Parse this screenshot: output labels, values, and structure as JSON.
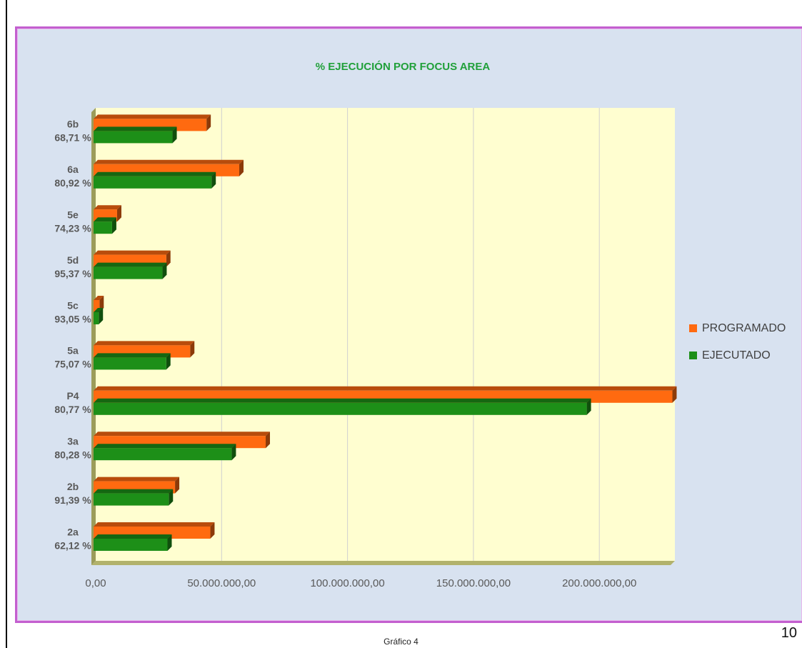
{
  "caption": "Gráfico 4",
  "page_number": "10",
  "colors": {
    "programado": "#ff6a10",
    "ejecutado": "#1d8f18",
    "title": "#21a03a",
    "plot_background": "#fffed0",
    "chart_background": "#d8e2f0",
    "frame_border": "#c35fcf"
  },
  "chart_data": {
    "type": "bar",
    "orientation": "horizontal",
    "title": "% EJECUCIÓN POR FOCUS AREA",
    "categories": [
      "2a",
      "2b",
      "3a",
      "P4",
      "5a",
      "5c",
      "5d",
      "5e",
      "6a",
      "6b"
    ],
    "category_percentages": [
      "62,12 %",
      "91,39 %",
      "80,28 %",
      "80,77 %",
      "75,07 %",
      "93,05 %",
      "95,37 %",
      "74,23 %",
      "80,92 %",
      "68,71 %"
    ],
    "series": [
      {
        "name": "PROGRAMADO",
        "values": [
          45500000,
          31500000,
          67500000,
          229000000,
          37500000,
          1500000,
          28000000,
          8500000,
          57000000,
          44000000
        ]
      },
      {
        "name": "EJECUTADO",
        "values": [
          28500000,
          29000000,
          54000000,
          195000000,
          28000000,
          1200000,
          26500000,
          6500000,
          46000000,
          30500000
        ]
      }
    ],
    "xlim": [
      0,
      230000000
    ],
    "x_ticks": [
      0,
      50000000,
      100000000,
      150000000,
      200000000
    ],
    "x_tick_labels": [
      "0,00",
      "50.000.000,00",
      "100.000.000,00",
      "150.000.000,00",
      "200.000.000,00"
    ],
    "xlabel": "",
    "ylabel": "",
    "grid": "vertical",
    "legend_position": "right"
  }
}
